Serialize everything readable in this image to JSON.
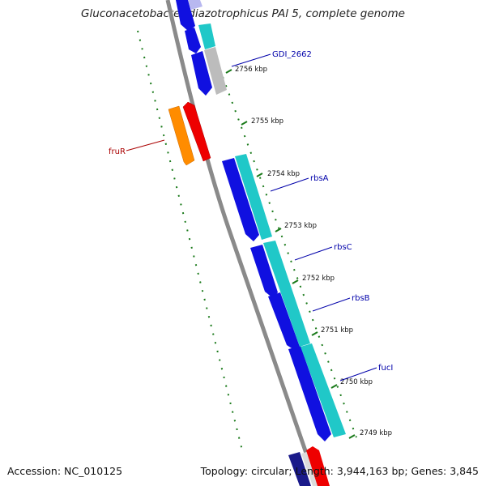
{
  "title": "Gluconacetobacter diazotrophicus PAl 5, complete genome",
  "accession": "Accession: NC_010125",
  "summary": "Topology: circular; Length: 3,944,163 bp; Genes: 3,845",
  "colors": {
    "backbone": "#8a8a8a",
    "tick": "#1a7a1a",
    "forward_gene": "#1010e0",
    "cds": "#20c8c8",
    "rna": "#bcbcbc",
    "fruR_orange": "#ff8c00",
    "fruR_red": "#ee0000",
    "label_blue": "#0000aa",
    "label_red": "#aa0000"
  },
  "ticks": [
    {
      "label": "2756 kbp"
    },
    {
      "label": "2755 kbp"
    },
    {
      "label": "2754 kbp"
    },
    {
      "label": "2753 kbp"
    },
    {
      "label": "2752 kbp"
    },
    {
      "label": "2751 kbp"
    },
    {
      "label": "2750 kbp"
    },
    {
      "label": "2749 kbp"
    }
  ],
  "gene_labels": [
    {
      "name": "GDI_2662"
    },
    {
      "name": "fruR"
    },
    {
      "name": "rbsA"
    },
    {
      "name": "rbsC"
    },
    {
      "name": "rbsB"
    },
    {
      "name": "fucI"
    }
  ]
}
